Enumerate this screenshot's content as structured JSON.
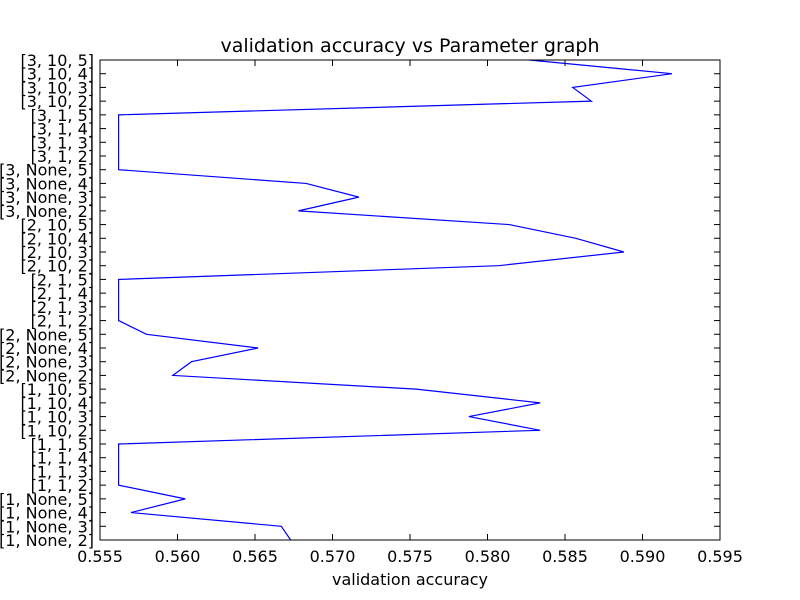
{
  "chart_data": {
    "type": "line",
    "title": "validation accuracy vs Parameter graph",
    "xlabel": "validation accuracy",
    "ylabel": "",
    "xlim": [
      0.555,
      0.595
    ],
    "xticks": [
      "0.555",
      "0.560",
      "0.565",
      "0.570",
      "0.575",
      "0.580",
      "0.585",
      "0.590",
      "0.595"
    ],
    "grid": false,
    "line_color": "#0000ff",
    "categories": [
      "[1, None, 2]",
      "[1, None, 3]",
      "[1, None, 4]",
      "[1, None, 5]",
      "[1, 1, 2]",
      "[1, 1, 3]",
      "[1, 1, 4]",
      "[1, 1, 5]",
      "[1, 10, 2]",
      "[1, 10, 3]",
      "[1, 10, 4]",
      "[1, 10, 5]",
      "[2, None, 2]",
      "[2, None, 3]",
      "[2, None, 4]",
      "[2, None, 5]",
      "[2, 1, 2]",
      "[2, 1, 3]",
      "[2, 1, 4]",
      "[2, 1, 5]",
      "[2, 10, 2]",
      "[2, 10, 3]",
      "[2, 10, 4]",
      "[2, 10, 5]",
      "[3, None, 2]",
      "[3, None, 3]",
      "[3, None, 4]",
      "[3, None, 5]",
      "[3, 1, 2]",
      "[3, 1, 3]",
      "[3, 1, 4]",
      "[3, 1, 5]",
      "[3, 10, 2]",
      "[3, 10, 3]",
      "[3, 10, 4]",
      "[3, 10, 5]"
    ],
    "values": [
      0.5673,
      0.5667,
      0.557,
      0.5605,
      0.5562,
      0.5562,
      0.5562,
      0.5562,
      0.5834,
      0.5788,
      0.5834,
      0.5754,
      0.5597,
      0.5609,
      0.5652,
      0.558,
      0.5562,
      0.5562,
      0.5562,
      0.5562,
      0.5807,
      0.5888,
      0.5857,
      0.5814,
      0.5678,
      0.5717,
      0.5683,
      0.5562,
      0.5562,
      0.5562,
      0.5562,
      0.5562,
      0.5867,
      0.5855,
      0.5919,
      0.5827
    ]
  }
}
